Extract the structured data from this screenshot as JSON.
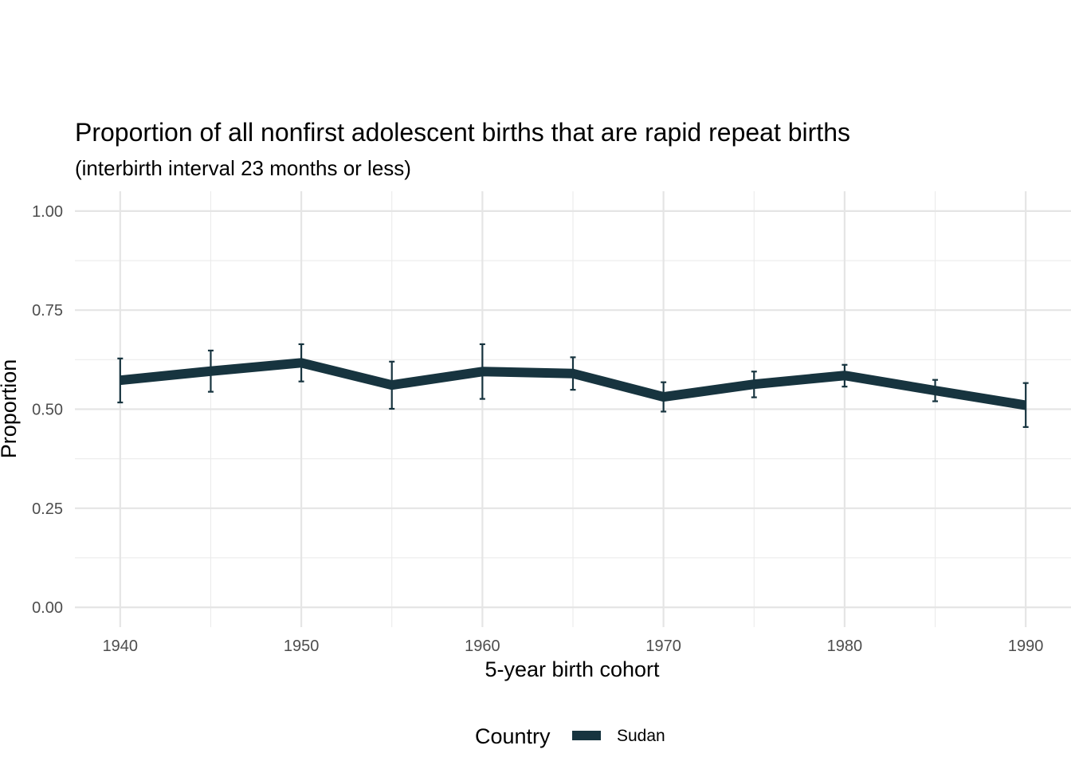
{
  "chart_data": {
    "type": "line",
    "title": "Proportion of all nonfirst adolescent births that are rapid repeat births",
    "subtitle": "(interbirth interval 23 months or less)",
    "xlabel": "5-year birth cohort",
    "ylabel": "Proportion",
    "xlim": [
      1937.5,
      1992.5
    ],
    "ylim": [
      -0.05,
      1.05
    ],
    "x_ticks": [
      1940,
      1950,
      1960,
      1970,
      1980,
      1990
    ],
    "x_tick_labels": [
      "1940",
      "1950",
      "1960",
      "1970",
      "1980",
      "1990"
    ],
    "x_minor_ticks": [
      1945,
      1955,
      1965,
      1975,
      1985
    ],
    "y_ticks": [
      0,
      0.25,
      0.5,
      0.75,
      1
    ],
    "y_tick_labels": [
      "0.00",
      "0.25",
      "0.50",
      "0.75",
      "1.00"
    ],
    "y_minor_ticks": [
      0.125,
      0.375,
      0.625,
      0.875
    ],
    "grid": true,
    "legend": {
      "title": "Country",
      "position": "bottom"
    },
    "series": [
      {
        "name": "Sudan",
        "color": "#17343f",
        "x": [
          1940,
          1945,
          1950,
          1955,
          1960,
          1965,
          1970,
          1975,
          1980,
          1985,
          1990
        ],
        "y": [
          0.573,
          0.596,
          0.617,
          0.561,
          0.595,
          0.59,
          0.531,
          0.563,
          0.585,
          0.547,
          0.51
        ],
        "lower": [
          0.517,
          0.544,
          0.57,
          0.501,
          0.526,
          0.549,
          0.494,
          0.53,
          0.557,
          0.52,
          0.455
        ],
        "upper": [
          0.628,
          0.648,
          0.664,
          0.62,
          0.664,
          0.631,
          0.568,
          0.595,
          0.612,
          0.574,
          0.566
        ]
      }
    ]
  }
}
